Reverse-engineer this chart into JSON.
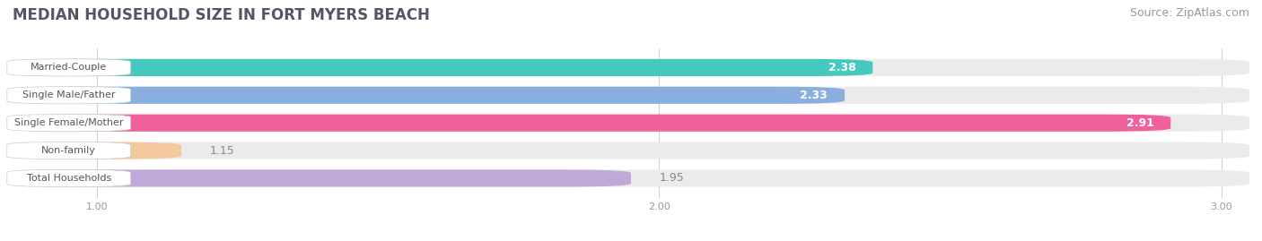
{
  "title": "MEDIAN HOUSEHOLD SIZE IN FORT MYERS BEACH",
  "source": "Source: ZipAtlas.com",
  "categories": [
    "Married-Couple",
    "Single Male/Father",
    "Single Female/Mother",
    "Non-family",
    "Total Households"
  ],
  "values": [
    2.38,
    2.33,
    2.91,
    1.15,
    1.95
  ],
  "bar_colors": [
    "#45c8be",
    "#8aaee0",
    "#f0609a",
    "#f5c9a0",
    "#c0a8d8"
  ],
  "bar_edge_colors": [
    "#35b0a8",
    "#6a90c8",
    "#d84080",
    "#dba878",
    "#a088c0"
  ],
  "label_inside": [
    true,
    true,
    true,
    false,
    false
  ],
  "xlim_data": [
    0.85,
    3.05
  ],
  "xmin": 0.85,
  "xmax": 3.05,
  "xticks": [
    1.0,
    2.0,
    3.0
  ],
  "title_fontsize": 12,
  "source_fontsize": 9,
  "bar_label_fontsize": 9,
  "category_fontsize": 8,
  "background_color": "#ffffff",
  "bar_background_color": "#ebebeb",
  "bar_height": 0.62
}
